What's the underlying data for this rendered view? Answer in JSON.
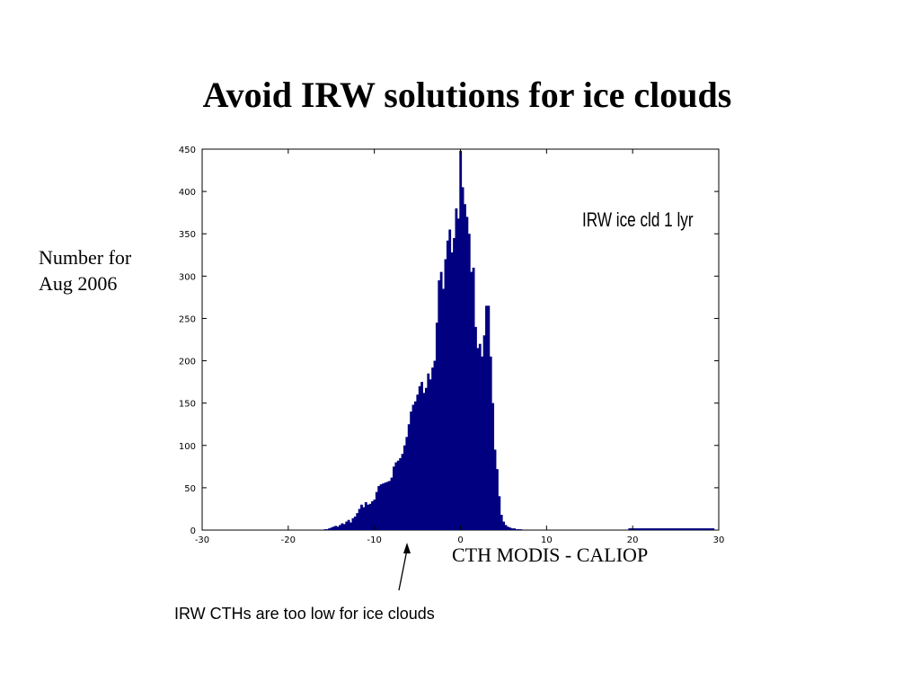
{
  "slide": {
    "title": "Avoid IRW solutions for ice clouds",
    "ylabel_lines": [
      "Number for",
      "Aug 2006"
    ],
    "xlabel": "CTH MODIS - CALIOP",
    "annotation": "IRW CTHs are too low for ice clouds"
  },
  "chart_data": {
    "type": "bar",
    "title": "IRW ice cld 1 lyr",
    "xlabel": "CTH MODIS - CALIOP",
    "ylabel": "Number for Aug 2006",
    "xlim": [
      -30,
      30
    ],
    "ylim": [
      0,
      450
    ],
    "xticks": [
      -30,
      -20,
      -10,
      0,
      10,
      20,
      30
    ],
    "xtick_labels": [
      "-30",
      "-20",
      "-10",
      "0",
      "10",
      "20",
      "30"
    ],
    "yticks": [
      0,
      50,
      100,
      150,
      200,
      250,
      300,
      350,
      400,
      450
    ],
    "ytick_labels": [
      "0",
      "50",
      "100",
      "150",
      "200",
      "250",
      "300",
      "350",
      "400",
      "450"
    ],
    "bar_color": "#000080",
    "grid": false,
    "legend": "none",
    "bin_width": 0.25,
    "series": [
      {
        "points": [
          [
            -16.0,
            0
          ],
          [
            -15.75,
            1
          ],
          [
            -15.5,
            1
          ],
          [
            -15.25,
            2
          ],
          [
            -15.0,
            3
          ],
          [
            -14.75,
            4
          ],
          [
            -14.5,
            5
          ],
          [
            -14.25,
            4
          ],
          [
            -14.0,
            6
          ],
          [
            -13.75,
            8
          ],
          [
            -13.5,
            7
          ],
          [
            -13.25,
            10
          ],
          [
            -13.0,
            12
          ],
          [
            -12.75,
            9
          ],
          [
            -12.5,
            14
          ],
          [
            -12.25,
            16
          ],
          [
            -12.0,
            20
          ],
          [
            -11.75,
            25
          ],
          [
            -11.5,
            30
          ],
          [
            -11.25,
            27
          ],
          [
            -11.0,
            33
          ],
          [
            -10.75,
            30
          ],
          [
            -10.5,
            31
          ],
          [
            -10.25,
            34
          ],
          [
            -10.0,
            36
          ],
          [
            -9.75,
            45
          ],
          [
            -9.5,
            52
          ],
          [
            -9.25,
            54
          ],
          [
            -9.0,
            55
          ],
          [
            -8.75,
            56
          ],
          [
            -8.5,
            57
          ],
          [
            -8.25,
            58
          ],
          [
            -8.0,
            62
          ],
          [
            -7.75,
            75
          ],
          [
            -7.5,
            80
          ],
          [
            -7.25,
            82
          ],
          [
            -7.0,
            85
          ],
          [
            -6.75,
            90
          ],
          [
            -6.5,
            100
          ],
          [
            -6.25,
            110
          ],
          [
            -6.0,
            125
          ],
          [
            -5.75,
            140
          ],
          [
            -5.5,
            148
          ],
          [
            -5.25,
            152
          ],
          [
            -5.0,
            160
          ],
          [
            -4.75,
            170
          ],
          [
            -4.5,
            175
          ],
          [
            -4.25,
            162
          ],
          [
            -4.0,
            168
          ],
          [
            -3.75,
            185
          ],
          [
            -3.5,
            178
          ],
          [
            -3.25,
            192
          ],
          [
            -3.0,
            200
          ],
          [
            -2.75,
            245
          ],
          [
            -2.5,
            295
          ],
          [
            -2.25,
            305
          ],
          [
            -2.0,
            285
          ],
          [
            -1.75,
            320
          ],
          [
            -1.5,
            342
          ],
          [
            -1.25,
            355
          ],
          [
            -1.0,
            328
          ],
          [
            -0.75,
            345
          ],
          [
            -0.5,
            380
          ],
          [
            -0.25,
            368
          ],
          [
            0.0,
            448
          ],
          [
            0.25,
            405
          ],
          [
            0.5,
            385
          ],
          [
            0.75,
            370
          ],
          [
            1.0,
            350
          ],
          [
            1.25,
            305
          ],
          [
            1.5,
            310
          ],
          [
            1.75,
            240
          ],
          [
            2.0,
            215
          ],
          [
            2.25,
            220
          ],
          [
            2.5,
            205
          ],
          [
            2.75,
            230
          ],
          [
            3.0,
            265
          ],
          [
            3.25,
            265
          ],
          [
            3.5,
            205
          ],
          [
            3.75,
            150
          ],
          [
            4.0,
            95
          ],
          [
            4.25,
            72
          ],
          [
            4.5,
            40
          ],
          [
            4.75,
            18
          ],
          [
            5.0,
            10
          ],
          [
            5.25,
            6
          ],
          [
            5.5,
            4
          ],
          [
            5.75,
            3
          ],
          [
            6.0,
            2
          ],
          [
            6.25,
            2
          ],
          [
            6.5,
            1
          ],
          [
            6.75,
            1
          ],
          [
            7.0,
            1
          ],
          [
            7.25,
            0
          ]
        ],
        "tail": [
          [
            19.5,
            29.5,
            1
          ]
        ]
      }
    ]
  }
}
